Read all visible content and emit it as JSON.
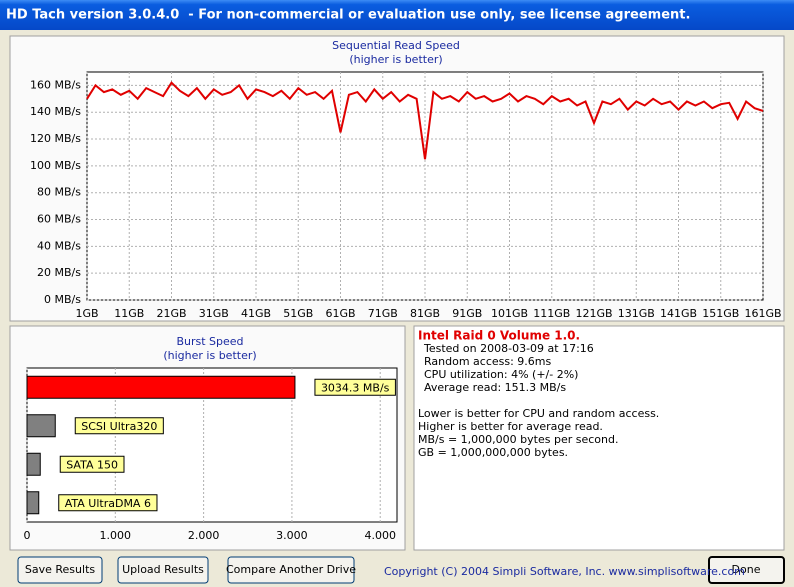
{
  "window": {
    "title": "HD Tach version 3.0.4.0  - For non-commercial or evaluation use only, see license agreement."
  },
  "chart_data": [
    {
      "type": "line",
      "title": "Sequential Read Speed",
      "subtitle": "(higher is better)",
      "x": [
        1,
        3,
        5,
        7,
        9,
        11,
        13,
        15,
        17,
        19,
        21,
        23,
        25,
        27,
        29,
        31,
        33,
        35,
        37,
        39,
        41,
        43,
        45,
        47,
        49,
        51,
        53,
        55,
        57,
        59,
        61,
        63,
        65,
        67,
        69,
        71,
        73,
        75,
        77,
        79,
        81,
        83,
        85,
        87,
        89,
        91,
        93,
        95,
        97,
        99,
        101,
        103,
        105,
        107,
        109,
        111,
        113,
        115,
        117,
        119,
        121,
        123,
        125,
        127,
        129,
        131,
        133,
        135,
        137,
        139,
        141,
        143,
        145,
        147,
        149,
        151,
        153,
        155,
        157,
        159,
        161
      ],
      "series": [
        {
          "color": "#e00000",
          "values": [
            150,
            160,
            155,
            157,
            153,
            156,
            150,
            158,
            155,
            152,
            162,
            156,
            152,
            158,
            150,
            157,
            153,
            155,
            160,
            150,
            157,
            155,
            152,
            156,
            150,
            158,
            153,
            155,
            150,
            156,
            125,
            153,
            155,
            148,
            157,
            150,
            155,
            148,
            153,
            150,
            105,
            155,
            150,
            152,
            148,
            155,
            150,
            152,
            148,
            150,
            154,
            148,
            152,
            150,
            146,
            152,
            148,
            150,
            145,
            148,
            132,
            148,
            146,
            150,
            142,
            148,
            145,
            150,
            146,
            148,
            142,
            148,
            145,
            148,
            143,
            146,
            147,
            135,
            148,
            143,
            141
          ]
        }
      ],
      "xlim": [
        1,
        161
      ],
      "xticks": [
        {
          "value": 1,
          "label": "1GB"
        },
        {
          "value": 11,
          "label": "11GB"
        },
        {
          "value": 21,
          "label": "21GB"
        },
        {
          "value": 31,
          "label": "31GB"
        },
        {
          "value": 41,
          "label": "41GB"
        },
        {
          "value": 51,
          "label": "51GB"
        },
        {
          "value": 61,
          "label": "61GB"
        },
        {
          "value": 71,
          "label": "71GB"
        },
        {
          "value": 81,
          "label": "81GB"
        },
        {
          "value": 91,
          "label": "91GB"
        },
        {
          "value": 101,
          "label": "101GB"
        },
        {
          "value": 111,
          "label": "111GB"
        },
        {
          "value": 121,
          "label": "121GB"
        },
        {
          "value": 131,
          "label": "131GB"
        },
        {
          "value": 141,
          "label": "141GB"
        },
        {
          "value": 151,
          "label": "151GB"
        },
        {
          "value": 161,
          "label": "161GB"
        }
      ],
      "ylim": [
        0,
        170
      ],
      "yticks": [
        {
          "value": 0,
          "label": "0 MB/s"
        },
        {
          "value": 20,
          "label": "20 MB/s"
        },
        {
          "value": 40,
          "label": "40 MB/s"
        },
        {
          "value": 60,
          "label": "60 MB/s"
        },
        {
          "value": 80,
          "label": "80 MB/s"
        },
        {
          "value": 100,
          "label": "100 MB/s"
        },
        {
          "value": 120,
          "label": "120 MB/s"
        },
        {
          "value": 140,
          "label": "140 MB/s"
        },
        {
          "value": 160,
          "label": "160 MB/s"
        }
      ],
      "grid": true
    },
    {
      "type": "hbar",
      "title": "Burst Speed",
      "subtitle": "(higher is better)",
      "categories": [
        null,
        "SCSI Ultra320",
        "SATA 150",
        "ATA UltraDMA 6"
      ],
      "values": [
        3034.3,
        320,
        150,
        133
      ],
      "value_labels": [
        "3034.3 MB/s",
        null,
        null,
        null
      ],
      "colors": [
        "#ff0000",
        "#808080",
        "#808080",
        "#808080"
      ],
      "xlim": [
        0,
        4190
      ],
      "xticks": [
        0,
        {
          "value": 1000,
          "label": "1.000"
        },
        {
          "value": 2000,
          "label": "2.000"
        },
        {
          "value": 3000,
          "label": "3.000"
        },
        {
          "value": 4000,
          "label": "4.000"
        }
      ],
      "grid": true
    }
  ],
  "info": {
    "heading": "Intel Raid 0 Volume 1.0.",
    "lines": [
      "Tested on 2008-03-09 at 17:16",
      "Random access: 9.6ms",
      "CPU utilization: 4% (+/- 2%)",
      "Average read: 151.3 MB/s"
    ],
    "notes": [
      "Lower is better for CPU and random access.",
      "Higher is better for average read.",
      "MB/s = 1,000,000 bytes per second.",
      "GB = 1,000,000,000 bytes."
    ]
  },
  "buttons": [
    "Save Results",
    "Upload Results",
    "Compare Another Drive",
    "Done"
  ],
  "copyright": "Copyright (C) 2004 Simpli Software, Inc. www.simplisoftware.com"
}
